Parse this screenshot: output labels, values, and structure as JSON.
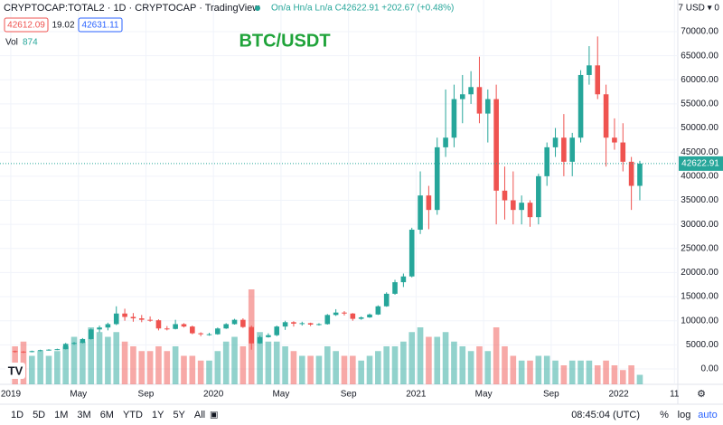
{
  "header": {
    "symbol": "CRYPTOCAP:TOTAL2 · 1D · CRYPTOCAP · TradingView",
    "ohlc": "On/a Hn/a Ln/a C42622.91 +202.67 (+0.48%)",
    "currency": "7 USD ▾ 0",
    "bid": "42612.09",
    "spread": "19.02",
    "ask": "42631.11",
    "vol_label": "Vol",
    "vol_value": "874"
  },
  "toolbar": {
    "ranges": [
      "1D",
      "5D",
      "1M",
      "3M",
      "6M",
      "YTD",
      "1Y",
      "5Y",
      "All"
    ],
    "clock": "08:45:04 (UTC)",
    "percent": "%",
    "log": "log",
    "auto": "auto"
  },
  "chart_data": {
    "type": "candlestick",
    "title": "BTC/USDT",
    "last_price_label": "42622.91",
    "last_price": 42622.91,
    "up_color": "#26a69a",
    "down_color": "#ef5350",
    "grid": true,
    "xlim": [
      -0.64,
      39.5
    ],
    "ylim": [
      -3190,
      76570
    ],
    "xticks": [
      {
        "value": 0,
        "label": "2019"
      },
      {
        "value": 4,
        "label": "May"
      },
      {
        "value": 8,
        "label": "Sep"
      },
      {
        "value": 12,
        "label": "2020"
      },
      {
        "value": 16,
        "label": "May"
      },
      {
        "value": 20,
        "label": "Sep"
      },
      {
        "value": 24,
        "label": "2021"
      },
      {
        "value": 28,
        "label": "May"
      },
      {
        "value": 32,
        "label": "Sep"
      },
      {
        "value": 36,
        "label": "2022"
      },
      {
        "value": 39.3,
        "label": "11"
      }
    ],
    "yticks": [
      {
        "value": 0,
        "label": "0.00"
      },
      {
        "value": 5000,
        "label": "5000.00"
      },
      {
        "value": 10000,
        "label": "10000.00"
      },
      {
        "value": 15000,
        "label": "15000.00"
      },
      {
        "value": 20000,
        "label": "20000.00"
      },
      {
        "value": 25000,
        "label": "25000.00"
      },
      {
        "value": 30000,
        "label": "30000.00"
      },
      {
        "value": 35000,
        "label": "35000.00"
      },
      {
        "value": 40000,
        "label": "40000.00"
      },
      {
        "value": 45000,
        "label": "45000.00"
      },
      {
        "value": 50000,
        "label": "50000.00"
      },
      {
        "value": 55000,
        "label": "55000.00"
      },
      {
        "value": 60000,
        "label": "60000.00"
      },
      {
        "value": 65000,
        "label": "65000.00"
      },
      {
        "value": 70000,
        "label": "70000.00"
      }
    ],
    "x": [
      0.25,
      0.75,
      1.25,
      1.75,
      2.25,
      2.75,
      3.25,
      3.75,
      4.25,
      4.75,
      5.25,
      5.75,
      6.25,
      6.75,
      7.25,
      7.75,
      8.25,
      8.75,
      9.25,
      9.75,
      10.25,
      10.75,
      11.25,
      11.75,
      12.25,
      12.75,
      13.25,
      13.75,
      14.25,
      14.75,
      15.25,
      15.75,
      16.25,
      16.75,
      17.25,
      17.75,
      18.25,
      18.75,
      19.25,
      19.75,
      20.25,
      20.75,
      21.25,
      21.75,
      22.25,
      22.75,
      23.25,
      23.75,
      24.25,
      24.75,
      25.25,
      25.75,
      26.25,
      26.75,
      27.25,
      27.75,
      28.25,
      28.75,
      29.25,
      29.75,
      30.25,
      30.75,
      31.25,
      31.75,
      32.25,
      32.75,
      33.25,
      33.75,
      34.25,
      34.75,
      35.25,
      35.75,
      36.25,
      36.75,
      37.25
    ],
    "candles": [
      [
        3700,
        3800,
        3400,
        3600
      ],
      [
        3600,
        3700,
        3300,
        3500
      ],
      [
        3500,
        3800,
        3450,
        3700
      ],
      [
        3700,
        4000,
        3650,
        3900
      ],
      [
        3900,
        4100,
        3800,
        4000
      ],
      [
        4000,
        4200,
        3900,
        4100
      ],
      [
        4100,
        5400,
        4050,
        5200
      ],
      [
        5200,
        5600,
        5000,
        5400
      ],
      [
        5400,
        6400,
        5300,
        6200
      ],
      [
        6200,
        8400,
        6100,
        8200
      ],
      [
        8200,
        9000,
        7600,
        8600
      ],
      [
        8600,
        9600,
        8000,
        9300
      ],
      [
        9300,
        13000,
        9100,
        11500
      ],
      [
        11500,
        12500,
        10000,
        10800
      ],
      [
        10800,
        11600,
        9800,
        10500
      ],
      [
        10500,
        11200,
        9700,
        10200
      ],
      [
        10200,
        10900,
        9800,
        10100
      ],
      [
        10100,
        10300,
        8000,
        8400
      ],
      [
        8400,
        8900,
        8000,
        8300
      ],
      [
        8300,
        10200,
        8200,
        9300
      ],
      [
        9300,
        9500,
        8600,
        8800
      ],
      [
        8800,
        9000,
        7200,
        7400
      ],
      [
        7400,
        7600,
        6800,
        7200
      ],
      [
        7200,
        7500,
        6900,
        7200
      ],
      [
        7200,
        8600,
        7100,
        8400
      ],
      [
        8400,
        9500,
        8300,
        9300
      ],
      [
        9300,
        10400,
        9200,
        10200
      ],
      [
        10200,
        10500,
        8500,
        8700
      ],
      [
        8700,
        9000,
        4000,
        5300
      ],
      [
        5300,
        6900,
        5200,
        6600
      ],
      [
        6600,
        7400,
        6500,
        7000
      ],
      [
        7000,
        9000,
        6800,
        8800
      ],
      [
        8800,
        10000,
        8100,
        9700
      ],
      [
        9700,
        9900,
        8800,
        9400
      ],
      [
        9400,
        9800,
        9000,
        9500
      ],
      [
        9500,
        9600,
        8900,
        9200
      ],
      [
        9200,
        9500,
        9000,
        9300
      ],
      [
        9300,
        11400,
        9200,
        11200
      ],
      [
        11200,
        12400,
        11000,
        11700
      ],
      [
        11700,
        12000,
        11100,
        11500
      ],
      [
        11500,
        11600,
        10000,
        10400
      ],
      [
        10400,
        10900,
        10200,
        10700
      ],
      [
        10700,
        11500,
        10600,
        11300
      ],
      [
        11300,
        13200,
        11200,
        13000
      ],
      [
        13000,
        15900,
        12900,
        15600
      ],
      [
        15600,
        18500,
        15400,
        18000
      ],
      [
        18000,
        19800,
        17000,
        19200
      ],
      [
        19200,
        29300,
        19000,
        28900
      ],
      [
        28900,
        41000,
        28000,
        36000
      ],
      [
        36000,
        38000,
        29000,
        33000
      ],
      [
        33000,
        48000,
        32000,
        46000
      ],
      [
        46000,
        58000,
        44000,
        48000
      ],
      [
        48000,
        59000,
        46000,
        56000
      ],
      [
        56000,
        61000,
        51000,
        57000
      ],
      [
        57000,
        61800,
        55000,
        58500
      ],
      [
        58500,
        64800,
        51000,
        53000
      ],
      [
        53000,
        58000,
        47000,
        56000
      ],
      [
        56000,
        59000,
        30000,
        37000
      ],
      [
        37000,
        42000,
        31000,
        35000
      ],
      [
        35000,
        41000,
        30000,
        33000
      ],
      [
        33000,
        36000,
        30000,
        34500
      ],
      [
        34500,
        35000,
        29500,
        31500
      ],
      [
        31500,
        40500,
        30000,
        40000
      ],
      [
        40000,
        47000,
        38000,
        46000
      ],
      [
        46000,
        50000,
        44000,
        48000
      ],
      [
        48000,
        52900,
        40000,
        43000
      ],
      [
        43000,
        49000,
        40000,
        48000
      ],
      [
        48000,
        62000,
        47000,
        61000
      ],
      [
        61000,
        67000,
        59000,
        63000
      ],
      [
        63000,
        69000,
        56000,
        57000
      ],
      [
        57000,
        59000,
        42000,
        48000
      ],
      [
        48000,
        52000,
        45500,
        47000
      ],
      [
        47000,
        51000,
        41000,
        43000
      ],
      [
        43000,
        44000,
        33000,
        38000
      ],
      [
        38000,
        43200,
        35000,
        42622.91
      ]
    ],
    "volume": [
      40,
      45,
      30,
      35,
      30,
      35,
      40,
      50,
      45,
      60,
      55,
      50,
      55,
      45,
      40,
      35,
      35,
      40,
      35,
      40,
      30,
      30,
      25,
      25,
      35,
      45,
      50,
      40,
      100,
      55,
      45,
      45,
      40,
      35,
      30,
      30,
      30,
      40,
      35,
      30,
      30,
      25,
      30,
      35,
      40,
      40,
      45,
      55,
      60,
      50,
      50,
      55,
      45,
      40,
      35,
      40,
      35,
      60,
      40,
      30,
      25,
      25,
      30,
      30,
      25,
      20,
      25,
      25,
      25,
      20,
      25,
      20,
      15,
      20,
      10
    ]
  }
}
